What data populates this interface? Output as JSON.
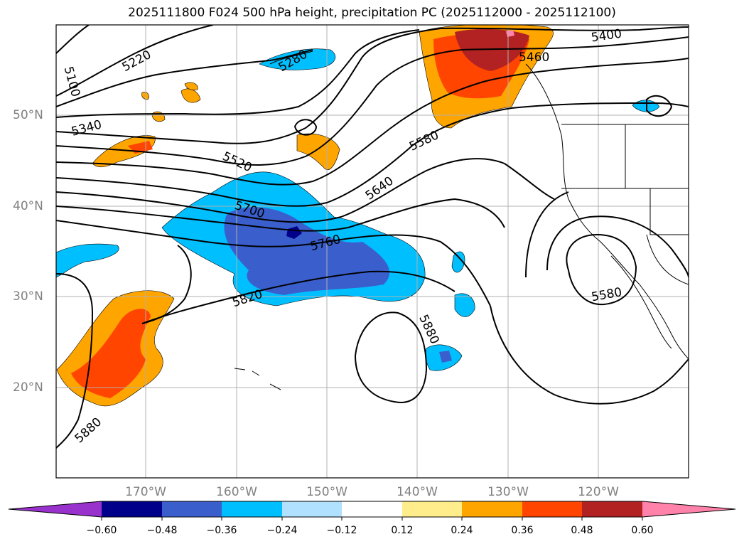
{
  "title": "2025111800 F024 500 hPa height, precipitation PC (2025112000 - 2025112100)",
  "lat_labels": [
    "50°N",
    "40°N",
    "30°N",
    "20°N"
  ],
  "lon_labels": [
    "170°W",
    "160°W",
    "150°W",
    "140°W",
    "130°W",
    "120°W"
  ],
  "contour_labels": [
    "5100",
    "5220",
    "5280",
    "5340",
    "5400",
    "5460",
    "5520",
    "5580",
    "5640",
    "5700",
    "5760",
    "5820",
    "5880",
    "5580",
    "5880"
  ],
  "colorbar": {
    "ticks": [
      "−0.60",
      "−0.48",
      "−0.36",
      "−0.24",
      "−0.12",
      "0.12",
      "0.24",
      "0.36",
      "0.48",
      "0.60"
    ],
    "colors": [
      "#9932cc",
      "#00008b",
      "#3a5fcd",
      "#00bfff",
      "#b0e2ff",
      "#ffffff",
      "#ffec8b",
      "#ffa500",
      "#ff4500",
      "#b22222",
      "#ff82ab"
    ]
  },
  "colors": {
    "neg_light": "#00bfff",
    "neg_mid": "#3a5fcd",
    "neg_dark": "#00008b",
    "pos_light": "#ffa500",
    "pos_mid": "#ff4500",
    "pos_dark": "#b22222",
    "pos_pink": "#ff82ab"
  }
}
